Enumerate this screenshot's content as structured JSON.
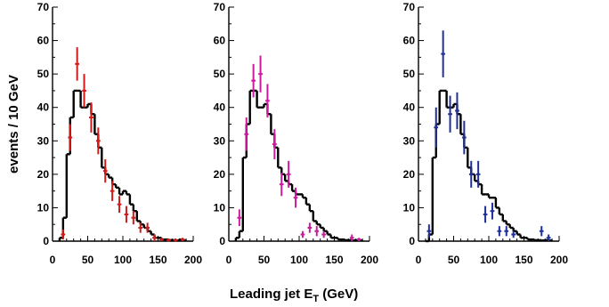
{
  "chart_data": {
    "type": "histogram",
    "ylabel": "events / 10 GeV",
    "xlabel_main": "Leading jet E",
    "xlabel_sub": "T",
    "xlabel_unit": " (GeV)",
    "xlim": [
      0,
      200
    ],
    "ylim": [
      0,
      70
    ],
    "xticks": [
      0,
      50,
      100,
      150,
      200
    ],
    "yticks": [
      0,
      10,
      20,
      30,
      40,
      50,
      60,
      70
    ],
    "bin_width": 5,
    "panels": [
      {
        "data_color": "#d11a1a",
        "histogram": [
          {
            "x": 10,
            "y": 1
          },
          {
            "x": 15,
            "y": 7
          },
          {
            "x": 20,
            "y": 26
          },
          {
            "x": 25,
            "y": 37
          },
          {
            "x": 30,
            "y": 45
          },
          {
            "x": 35,
            "y": 45
          },
          {
            "x": 40,
            "y": 40
          },
          {
            "x": 45,
            "y": 40
          },
          {
            "x": 50,
            "y": 41
          },
          {
            "x": 55,
            "y": 38
          },
          {
            "x": 60,
            "y": 32
          },
          {
            "x": 65,
            "y": 28
          },
          {
            "x": 70,
            "y": 22
          },
          {
            "x": 75,
            "y": 20
          },
          {
            "x": 80,
            "y": 19
          },
          {
            "x": 85,
            "y": 17
          },
          {
            "x": 90,
            "y": 16
          },
          {
            "x": 95,
            "y": 14
          },
          {
            "x": 100,
            "y": 15
          },
          {
            "x": 105,
            "y": 14
          },
          {
            "x": 110,
            "y": 11
          },
          {
            "x": 115,
            "y": 9
          },
          {
            "x": 120,
            "y": 6
          },
          {
            "x": 125,
            "y": 5
          },
          {
            "x": 130,
            "y": 4
          },
          {
            "x": 135,
            "y": 3
          },
          {
            "x": 140,
            "y": 2
          },
          {
            "x": 145,
            "y": 1
          },
          {
            "x": 150,
            "y": 1
          },
          {
            "x": 155,
            "y": 0.5
          },
          {
            "x": 160,
            "y": 0.5
          },
          {
            "x": 165,
            "y": 0.3
          },
          {
            "x": 170,
            "y": 0.3
          },
          {
            "x": 175,
            "y": 0.2
          },
          {
            "x": 180,
            "y": 0.5
          },
          {
            "x": 185,
            "y": 0.2
          }
        ],
        "points": [
          {
            "x": 15,
            "y": 2,
            "err": 1.5
          },
          {
            "x": 25,
            "y": 31,
            "err": 4
          },
          {
            "x": 35,
            "y": 53,
            "err": 5
          },
          {
            "x": 45,
            "y": 45,
            "err": 5
          },
          {
            "x": 55,
            "y": 37,
            "err": 4.5
          },
          {
            "x": 65,
            "y": 30,
            "err": 4
          },
          {
            "x": 75,
            "y": 21,
            "err": 3.5
          },
          {
            "x": 85,
            "y": 15,
            "err": 3
          },
          {
            "x": 95,
            "y": 11,
            "err": 2.5
          },
          {
            "x": 105,
            "y": 8,
            "err": 2.5
          },
          {
            "x": 115,
            "y": 7,
            "err": 2
          },
          {
            "x": 125,
            "y": 4,
            "err": 1.5
          },
          {
            "x": 135,
            "y": 4,
            "err": 1.5
          },
          {
            "x": 145,
            "y": 1,
            "err": 1
          },
          {
            "x": 155,
            "y": 0.5,
            "err": 0.5
          },
          {
            "x": 165,
            "y": 0.3,
            "err": 0.5
          },
          {
            "x": 175,
            "y": 0.3,
            "err": 0.5
          },
          {
            "x": 185,
            "y": 0.5,
            "err": 0.5
          }
        ]
      },
      {
        "data_color": "#c81c9c",
        "histogram": [
          {
            "x": 10,
            "y": 1
          },
          {
            "x": 15,
            "y": 3
          },
          {
            "x": 20,
            "y": 25
          },
          {
            "x": 25,
            "y": 35
          },
          {
            "x": 30,
            "y": 45
          },
          {
            "x": 35,
            "y": 45
          },
          {
            "x": 40,
            "y": 40
          },
          {
            "x": 45,
            "y": 40
          },
          {
            "x": 50,
            "y": 41
          },
          {
            "x": 55,
            "y": 38
          },
          {
            "x": 60,
            "y": 32
          },
          {
            "x": 65,
            "y": 28
          },
          {
            "x": 70,
            "y": 22
          },
          {
            "x": 75,
            "y": 20
          },
          {
            "x": 80,
            "y": 18
          },
          {
            "x": 85,
            "y": 17
          },
          {
            "x": 90,
            "y": 15
          },
          {
            "x": 95,
            "y": 14
          },
          {
            "x": 100,
            "y": 14
          },
          {
            "x": 105,
            "y": 13
          },
          {
            "x": 110,
            "y": 11
          },
          {
            "x": 115,
            "y": 9
          },
          {
            "x": 120,
            "y": 6
          },
          {
            "x": 125,
            "y": 5
          },
          {
            "x": 130,
            "y": 4
          },
          {
            "x": 135,
            "y": 3
          },
          {
            "x": 140,
            "y": 2
          },
          {
            "x": 145,
            "y": 1
          },
          {
            "x": 150,
            "y": 1
          },
          {
            "x": 155,
            "y": 0.5
          },
          {
            "x": 160,
            "y": 0.5
          },
          {
            "x": 165,
            "y": 0.3
          },
          {
            "x": 170,
            "y": 0.3
          },
          {
            "x": 175,
            "y": 0.2
          },
          {
            "x": 180,
            "y": 0.3
          },
          {
            "x": 185,
            "y": 0.2
          }
        ],
        "points": [
          {
            "x": 15,
            "y": 7,
            "err": 2.5
          },
          {
            "x": 25,
            "y": 32,
            "err": 5
          },
          {
            "x": 35,
            "y": 48,
            "err": 5
          },
          {
            "x": 45,
            "y": 50,
            "err": 5.5
          },
          {
            "x": 55,
            "y": 42,
            "err": 5
          },
          {
            "x": 65,
            "y": 29,
            "err": 4.5
          },
          {
            "x": 75,
            "y": 17,
            "err": 3.5
          },
          {
            "x": 85,
            "y": 20,
            "err": 4
          },
          {
            "x": 95,
            "y": 13,
            "err": 3
          },
          {
            "x": 105,
            "y": 2,
            "err": 1
          },
          {
            "x": 115,
            "y": 4,
            "err": 1.5
          },
          {
            "x": 125,
            "y": 3,
            "err": 1.5
          },
          {
            "x": 135,
            "y": 2,
            "err": 1
          },
          {
            "x": 175,
            "y": 1,
            "err": 1
          },
          {
            "x": 185,
            "y": 0.5,
            "err": 0.5
          }
        ]
      },
      {
        "data_color": "#1e2f9c",
        "histogram": [
          {
            "x": 10,
            "y": 0
          },
          {
            "x": 15,
            "y": 2
          },
          {
            "x": 20,
            "y": 25
          },
          {
            "x": 25,
            "y": 35
          },
          {
            "x": 30,
            "y": 45
          },
          {
            "x": 35,
            "y": 45
          },
          {
            "x": 40,
            "y": 40
          },
          {
            "x": 45,
            "y": 40
          },
          {
            "x": 50,
            "y": 41
          },
          {
            "x": 55,
            "y": 38
          },
          {
            "x": 60,
            "y": 32
          },
          {
            "x": 65,
            "y": 28
          },
          {
            "x": 70,
            "y": 22
          },
          {
            "x": 75,
            "y": 20
          },
          {
            "x": 80,
            "y": 18
          },
          {
            "x": 85,
            "y": 17
          },
          {
            "x": 90,
            "y": 14
          },
          {
            "x": 95,
            "y": 14
          },
          {
            "x": 100,
            "y": 13
          },
          {
            "x": 105,
            "y": 13
          },
          {
            "x": 110,
            "y": 10
          },
          {
            "x": 115,
            "y": 8
          },
          {
            "x": 120,
            "y": 6
          },
          {
            "x": 125,
            "y": 5
          },
          {
            "x": 130,
            "y": 4
          },
          {
            "x": 135,
            "y": 3
          },
          {
            "x": 140,
            "y": 2
          },
          {
            "x": 145,
            "y": 1
          },
          {
            "x": 150,
            "y": 1
          },
          {
            "x": 155,
            "y": 0.5
          },
          {
            "x": 160,
            "y": 0.5
          },
          {
            "x": 165,
            "y": 0.3
          },
          {
            "x": 170,
            "y": 0.3
          },
          {
            "x": 175,
            "y": 0.2
          },
          {
            "x": 180,
            "y": 0.3
          },
          {
            "x": 185,
            "y": 0.2
          }
        ],
        "points": [
          {
            "x": 15,
            "y": 3,
            "err": 2
          },
          {
            "x": 25,
            "y": 34,
            "err": 6
          },
          {
            "x": 35,
            "y": 56,
            "err": 7
          },
          {
            "x": 45,
            "y": 38,
            "err": 5.5
          },
          {
            "x": 55,
            "y": 39,
            "err": 5.5
          },
          {
            "x": 65,
            "y": 31,
            "err": 5
          },
          {
            "x": 75,
            "y": 20,
            "err": 4
          },
          {
            "x": 85,
            "y": 20,
            "err": 4
          },
          {
            "x": 95,
            "y": 8,
            "err": 2.5
          },
          {
            "x": 105,
            "y": 9,
            "err": 2.5
          },
          {
            "x": 115,
            "y": 3,
            "err": 1.5
          },
          {
            "x": 125,
            "y": 3,
            "err": 1.5
          },
          {
            "x": 135,
            "y": 2,
            "err": 1
          },
          {
            "x": 175,
            "y": 3,
            "err": 1.5
          },
          {
            "x": 185,
            "y": 1,
            "err": 1
          }
        ]
      }
    ]
  }
}
